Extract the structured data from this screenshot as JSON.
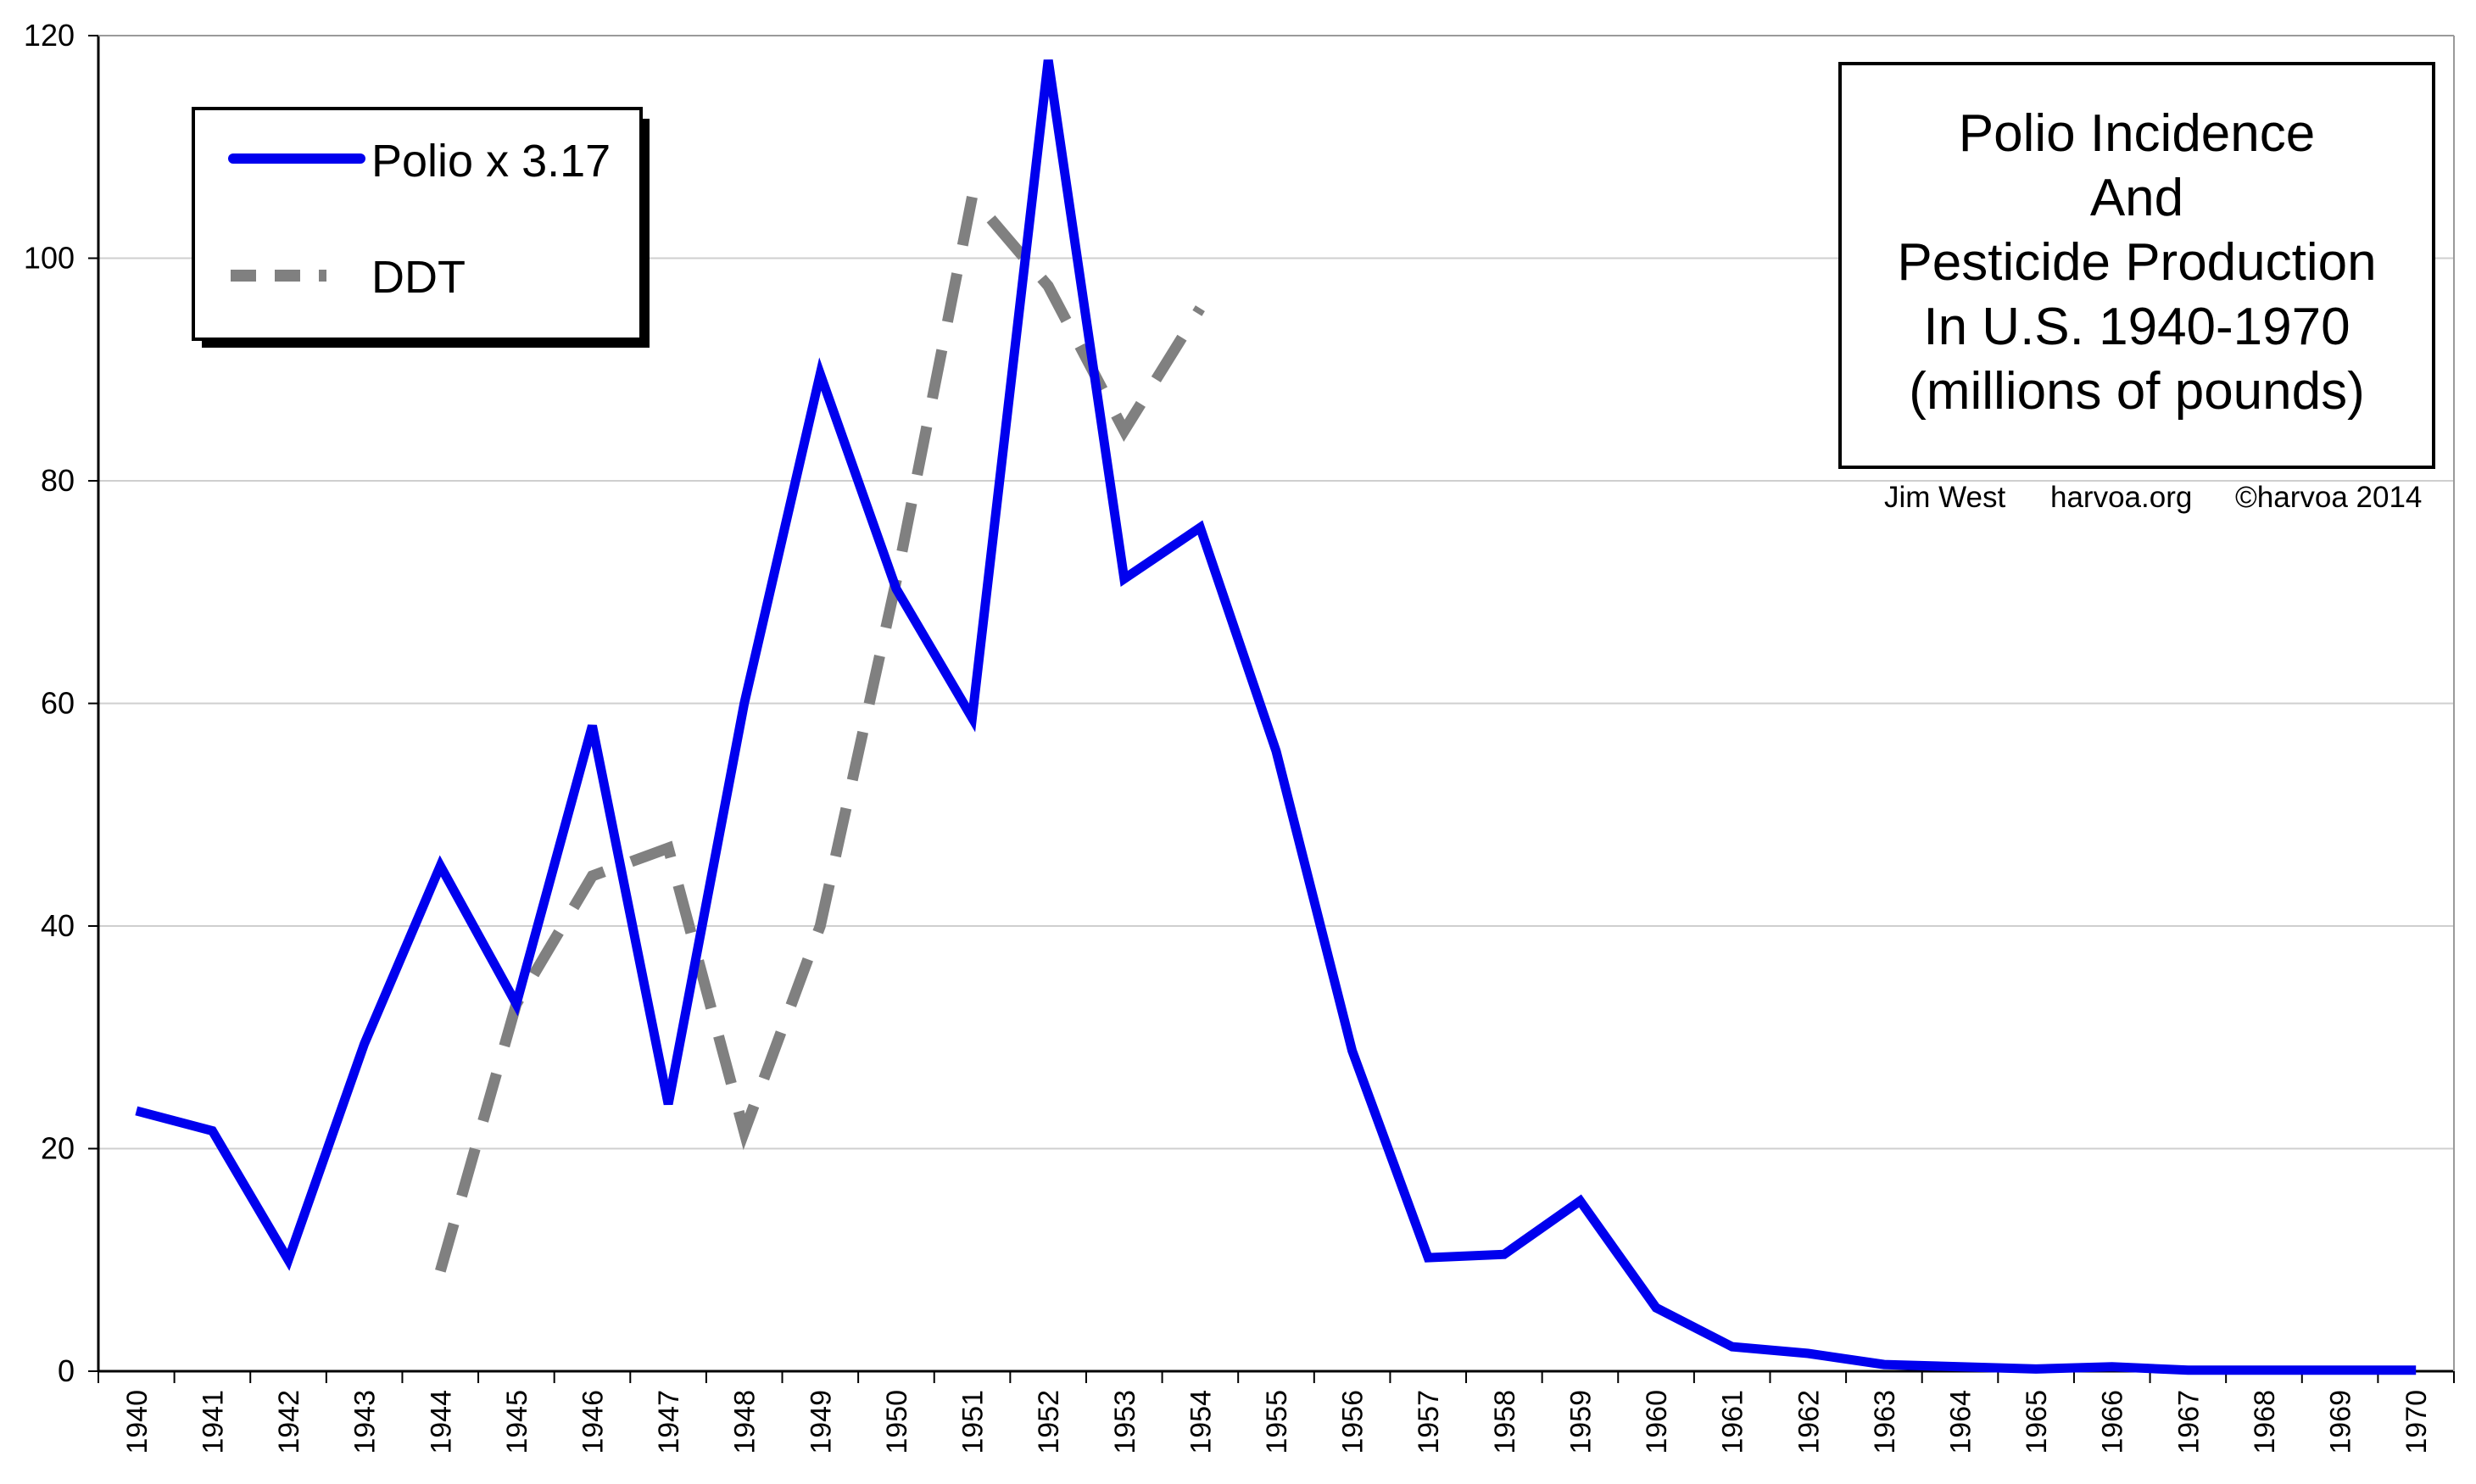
{
  "chart_data": {
    "type": "line",
    "title_lines": [
      "Polio Incidence",
      "And",
      "Pesticide Production",
      "In U.S. 1940-1970",
      "(millions of pounds)"
    ],
    "credits": [
      "Jim West",
      "harvoa.org",
      "©harvoa 2014"
    ],
    "xlabel": "",
    "ylabel": "",
    "ylim": [
      0,
      120
    ],
    "y_ticks": [
      0,
      20,
      40,
      60,
      80,
      100,
      120
    ],
    "grid": true,
    "legend_position": "top-left",
    "x": [
      1940,
      1941,
      1942,
      1943,
      1944,
      1945,
      1946,
      1947,
      1948,
      1949,
      1950,
      1951,
      1952,
      1953,
      1954,
      1955,
      1956,
      1957,
      1958,
      1959,
      1960,
      1961,
      1962,
      1963,
      1964,
      1965,
      1966,
      1967,
      1968,
      1969,
      1970
    ],
    "series": [
      {
        "name": "Polio x 3.17",
        "color": "#0000ee",
        "style": "solid",
        "values": [
          23.4,
          21.6,
          10.0,
          29.4,
          45.4,
          33.0,
          58.0,
          24.0,
          60.0,
          89.6,
          70.3,
          58.7,
          117.8,
          71.2,
          75.8,
          55.7,
          28.8,
          10.2,
          10.5,
          15.3,
          5.7,
          2.2,
          1.6,
          0.6,
          0.4,
          0.2,
          0.4,
          0.1,
          0.1,
          0.1,
          0.1
        ]
      },
      {
        "name": "DDT",
        "color": "#808080",
        "style": "dashed",
        "values": [
          null,
          null,
          null,
          null,
          9.0,
          33.0,
          44.5,
          47.0,
          21.5,
          40.0,
          71.0,
          105.5,
          97.5,
          84.5,
          95.5,
          null,
          null,
          null,
          null,
          null,
          null,
          null,
          null,
          null,
          null,
          null,
          null,
          null,
          null,
          null,
          null
        ]
      }
    ]
  }
}
